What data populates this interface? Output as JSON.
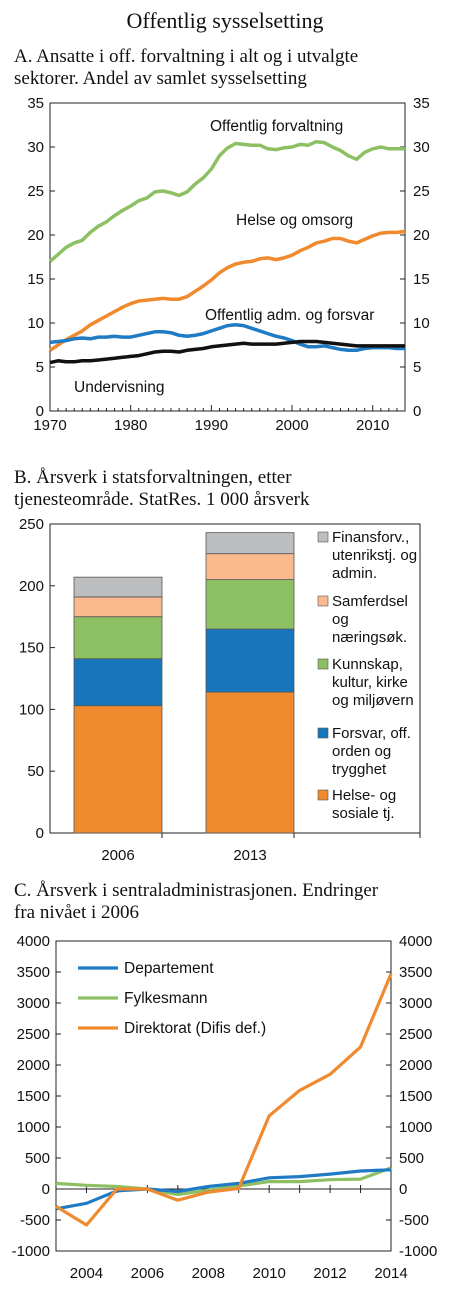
{
  "title": "Offentlig sysselsetting",
  "chart_data": [
    {
      "id": "A",
      "type": "line",
      "title": "A.  Ansatte i  off. forvaltning i alt og i utvalgte sektorer. Andel av samlet sysselsetting",
      "title_lines": [
        "A.  Ansatte i  off. forvaltning i alt og i utvalgte",
        "sektorer. Andel av samlet sysselsetting"
      ],
      "xlim": [
        1970,
        2014
      ],
      "ylim": [
        0,
        35
      ],
      "yticks": [
        0,
        5,
        10,
        15,
        20,
        25,
        30,
        35
      ],
      "xticks": [
        1970,
        1980,
        1990,
        2000,
        2010
      ],
      "tick_labels_y": [
        "0",
        "5",
        "10",
        "15",
        "20",
        "25",
        "30",
        "35"
      ],
      "tick_labels_x": [
        "1970",
        "1980",
        "1990",
        "2000",
        "2010"
      ],
      "secondary_axis": true,
      "grid": false,
      "series": [
        {
          "name": "Offentlig forvaltning",
          "color": "#8cc063",
          "x": [
            1970,
            1971,
            1972,
            1973,
            1974,
            1975,
            1976,
            1977,
            1978,
            1979,
            1980,
            1981,
            1982,
            1983,
            1984,
            1985,
            1986,
            1987,
            1988,
            1989,
            1990,
            1991,
            1992,
            1993,
            1994,
            1995,
            1996,
            1997,
            1998,
            1999,
            2000,
            2001,
            2002,
            2003,
            2004,
            2005,
            2006,
            2007,
            2008,
            2009,
            2010,
            2011,
            2012,
            2013,
            2014
          ],
          "values": [
            17.0,
            17.8,
            18.6,
            19.1,
            19.4,
            20.3,
            21.0,
            21.5,
            22.2,
            22.8,
            23.3,
            23.9,
            24.2,
            24.9,
            25.0,
            24.8,
            24.5,
            24.9,
            25.8,
            26.5,
            27.5,
            29.0,
            29.9,
            30.4,
            30.3,
            30.2,
            30.2,
            29.8,
            29.7,
            29.9,
            30.0,
            30.3,
            30.2,
            30.6,
            30.5,
            30.0,
            29.6,
            29.0,
            28.6,
            29.4,
            29.8,
            30.0,
            29.8,
            29.8,
            29.8
          ]
        },
        {
          "name": "Helse og omsorg",
          "color": "#ef8a2e",
          "x": [
            1970,
            1971,
            1972,
            1973,
            1974,
            1975,
            1976,
            1977,
            1978,
            1979,
            1980,
            1981,
            1982,
            1983,
            1984,
            1985,
            1986,
            1987,
            1988,
            1989,
            1990,
            1991,
            1992,
            1993,
            1994,
            1995,
            1996,
            1997,
            1998,
            1999,
            2000,
            2001,
            2002,
            2003,
            2004,
            2005,
            2006,
            2007,
            2008,
            2009,
            2010,
            2011,
            2012,
            2013,
            2014
          ],
          "values": [
            6.9,
            7.5,
            8.1,
            8.6,
            9.1,
            9.8,
            10.3,
            10.8,
            11.3,
            11.8,
            12.2,
            12.5,
            12.6,
            12.7,
            12.8,
            12.7,
            12.7,
            13.0,
            13.6,
            14.2,
            14.9,
            15.7,
            16.3,
            16.7,
            16.9,
            17.0,
            17.3,
            17.4,
            17.2,
            17.4,
            17.7,
            18.2,
            18.6,
            19.1,
            19.3,
            19.6,
            19.6,
            19.3,
            19.1,
            19.5,
            19.9,
            20.2,
            20.3,
            20.3,
            20.4
          ]
        },
        {
          "name": "Offentlig adm. og forsvar",
          "color": "#1f7bc3",
          "x": [
            1970,
            1971,
            1972,
            1973,
            1974,
            1975,
            1976,
            1977,
            1978,
            1979,
            1980,
            1981,
            1982,
            1983,
            1984,
            1985,
            1986,
            1987,
            1988,
            1989,
            1990,
            1991,
            1992,
            1993,
            1994,
            1995,
            1996,
            1997,
            1998,
            1999,
            2000,
            2001,
            2002,
            2003,
            2004,
            2005,
            2006,
            2007,
            2008,
            2009,
            2010,
            2011,
            2012,
            2013,
            2014
          ],
          "values": [
            7.8,
            7.9,
            8.0,
            8.2,
            8.3,
            8.2,
            8.4,
            8.4,
            8.5,
            8.4,
            8.4,
            8.6,
            8.8,
            9.0,
            9.0,
            8.9,
            8.6,
            8.5,
            8.6,
            8.8,
            9.1,
            9.4,
            9.7,
            9.8,
            9.7,
            9.4,
            9.1,
            8.8,
            8.5,
            8.3,
            8.0,
            7.6,
            7.3,
            7.3,
            7.4,
            7.2,
            7.0,
            6.9,
            6.9,
            7.1,
            7.2,
            7.2,
            7.2,
            7.1,
            7.1
          ]
        },
        {
          "name": "Undervisning",
          "color": "#111111",
          "x": [
            1970,
            1971,
            1972,
            1973,
            1974,
            1975,
            1976,
            1977,
            1978,
            1979,
            1980,
            1981,
            1982,
            1983,
            1984,
            1985,
            1986,
            1987,
            1988,
            1989,
            1990,
            1991,
            1992,
            1993,
            1994,
            1995,
            1996,
            1997,
            1998,
            1999,
            2000,
            2001,
            2002,
            2003,
            2004,
            2005,
            2006,
            2007,
            2008,
            2009,
            2010,
            2011,
            2012,
            2013,
            2014
          ],
          "values": [
            5.5,
            5.7,
            5.6,
            5.6,
            5.7,
            5.7,
            5.8,
            5.9,
            6.0,
            6.1,
            6.2,
            6.3,
            6.5,
            6.7,
            6.8,
            6.8,
            6.7,
            6.9,
            7.0,
            7.1,
            7.3,
            7.4,
            7.5,
            7.6,
            7.7,
            7.6,
            7.6,
            7.6,
            7.6,
            7.7,
            7.8,
            7.9,
            7.9,
            7.9,
            7.8,
            7.7,
            7.6,
            7.5,
            7.4,
            7.4,
            7.4,
            7.4,
            7.4,
            7.4,
            7.4
          ]
        }
      ],
      "annotations": [
        "Offentlig forvaltning",
        "Helse og omsorg",
        "Offentlig adm. og forsvar",
        "Undervisning"
      ]
    },
    {
      "id": "B",
      "type": "bar",
      "stacked": true,
      "title": "B.  Årsverk i statsforvaltningen, etter tjenesteområde. StatRes. 1 000 årsverk",
      "title_lines": [
        "B.  Årsverk i statsforvaltningen, etter",
        "tjenesteområde. StatRes. 1 000 årsverk"
      ],
      "categories": [
        "2006",
        "2013"
      ],
      "ylim": [
        0,
        250
      ],
      "yticks": [
        0,
        50,
        100,
        150,
        200,
        250
      ],
      "tick_labels_y": [
        "0",
        "50",
        "100",
        "150",
        "200",
        "250"
      ],
      "grid": false,
      "legend_position": "right",
      "series": [
        {
          "name": "Helse- og sosiale tj.",
          "legend_lines": [
            "Helse- og",
            "sosiale tj."
          ],
          "color": "#ef8a2e",
          "values": [
            103,
            114
          ]
        },
        {
          "name": "Forsvar, off. orden og trygghet",
          "legend_lines": [
            "Forsvar, off.",
            "orden og",
            "trygghet"
          ],
          "color": "#1675bb",
          "values": [
            38,
            51
          ]
        },
        {
          "name": "Kunnskap, kultur, kirke og miljøvern",
          "legend_lines": [
            "Kunnskap,",
            "kultur, kirke",
            "og miljøvern"
          ],
          "color": "#8cc063",
          "values": [
            34,
            40
          ]
        },
        {
          "name": "Samferdsel og næringsøk.",
          "legend_lines": [
            "Samferdsel",
            "og",
            "næringsøk."
          ],
          "color": "#fbb98e",
          "values": [
            16,
            21
          ]
        },
        {
          "name": "Finansforv., utenrikstj. og admin.",
          "legend_lines": [
            "Finansforv.,",
            "utenrikstj. og",
            "admin."
          ],
          "color": "#bdbec0",
          "values": [
            16,
            17
          ]
        }
      ]
    },
    {
      "id": "C",
      "type": "line",
      "title": "C.  Årsverk i sentraladministrasjonen. Endringer fra nivået i 2006",
      "title_lines": [
        "C.  Årsverk i sentraladministrasjonen. Endringer",
        "fra nivået i 2006"
      ],
      "xlim": [
        2003,
        2014
      ],
      "ylim": [
        -1000,
        4000
      ],
      "yticks": [
        -1000,
        -500,
        0,
        500,
        1000,
        1500,
        2000,
        2500,
        3000,
        3500,
        4000
      ],
      "tick_labels_y": [
        "-1000",
        "-500",
        "0",
        "500",
        "1000",
        "1500",
        "2000",
        "2500",
        "3000",
        "3500",
        "4000"
      ],
      "tick_labels_x": [
        "2004",
        "2006",
        "2008",
        "2010",
        "2012",
        "2014"
      ],
      "xticks": [
        2004,
        2006,
        2008,
        2010,
        2012,
        2014
      ],
      "secondary_axis": true,
      "grid": false,
      "legend_position": "top-left",
      "series": [
        {
          "name": "Departement",
          "color": "#1f7bc3",
          "x": [
            2003,
            2004,
            2005,
            2006,
            2007,
            2008,
            2009,
            2010,
            2011,
            2012,
            2013,
            2014
          ],
          "values": [
            -320,
            -230,
            -30,
            0,
            -40,
            40,
            90,
            180,
            200,
            240,
            290,
            310
          ]
        },
        {
          "name": "Fylkesmann",
          "color": "#8cc063",
          "x": [
            2003,
            2004,
            2005,
            2006,
            2007,
            2008,
            2009,
            2010,
            2011,
            2012,
            2013,
            2014
          ],
          "values": [
            90,
            60,
            40,
            0,
            -90,
            -20,
            50,
            120,
            120,
            150,
            160,
            340
          ]
        },
        {
          "name": "Direktorat (Difis def.)",
          "color": "#ef8a2e",
          "x": [
            2003,
            2004,
            2005,
            2006,
            2007,
            2008,
            2009,
            2010,
            2011,
            2012,
            2013,
            2014
          ],
          "values": [
            -280,
            -580,
            0,
            0,
            -180,
            -50,
            10,
            1180,
            1590,
            1850,
            2290,
            3470
          ]
        }
      ]
    }
  ]
}
